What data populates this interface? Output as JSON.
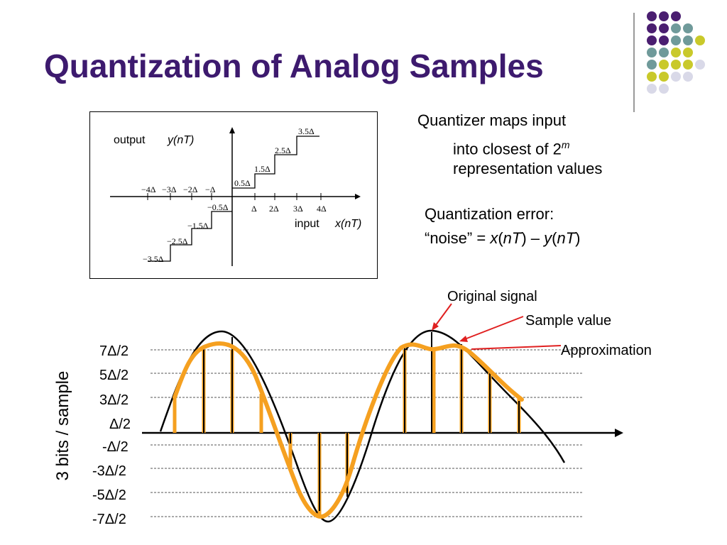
{
  "slide": {
    "title": "Quantization of Analog Samples",
    "accent_color": "#3d1a6e"
  },
  "decor": {
    "dot_rows": [
      [
        "#4a1e70",
        "#4a1e70",
        "#4a1e70"
      ],
      [
        "#4a1e70",
        "#4a1e70",
        "#6f9a9a",
        "#6f9a9a"
      ],
      [
        "#4a1e70",
        "#4a1e70",
        "#6f9a9a",
        "#6f9a9a",
        "#c9c92a"
      ],
      [
        "#6f9a9a",
        "#6f9a9a",
        "#c9c92a",
        "#c9c92a"
      ],
      [
        "#6f9a9a",
        "#c9c92a",
        "#c9c92a",
        "#c9c92a",
        "#d9d9e8"
      ],
      [
        "#c9c92a",
        "#c9c92a",
        "#d9d9e8",
        "#d9d9e8"
      ],
      [
        "#d9d9e8",
        "#d9d9e8"
      ]
    ]
  },
  "quantizer": {
    "output_label": "output",
    "output_var": "y(nT)",
    "input_label": "input",
    "input_var": "x(nT)",
    "pos_x_ticks": [
      "Δ",
      "2Δ",
      "3Δ",
      "4Δ"
    ],
    "neg_x_ticks": [
      "−4Δ",
      "−3Δ",
      "−2Δ",
      "−Δ"
    ],
    "pos_levels": [
      "0.5Δ",
      "1.5Δ",
      "2.5Δ",
      "3.5Δ"
    ],
    "neg_levels": [
      "−0.5Δ",
      "−1.5Δ",
      "−2.5Δ",
      "−3.5Δ"
    ]
  },
  "text": {
    "line1": "Quantizer maps input",
    "line2_prefix": "into closest of 2",
    "line2_sup": "m",
    "line3": "representation values",
    "error_line1": "Quantization error:",
    "error_open": "“noise” = ",
    "error_x": "x",
    "error_nT1": "nT",
    "error_minus": " – ",
    "error_y": "y",
    "error_nT2": "nT"
  },
  "waveform": {
    "original_signal_label": "Original signal",
    "sample_value_label": "Sample value",
    "approximation_label": "Approximation",
    "bits_label": "3 bits / sample",
    "levels": [
      "7Δ/2",
      "5Δ/2",
      "3Δ/2",
      "Δ/2",
      "-Δ/2",
      "-3Δ/2",
      "-5Δ/2",
      "-7Δ/2"
    ],
    "signal_color": "#000000",
    "sample_color": "#f5a020",
    "arrow_color": "#e02020"
  }
}
